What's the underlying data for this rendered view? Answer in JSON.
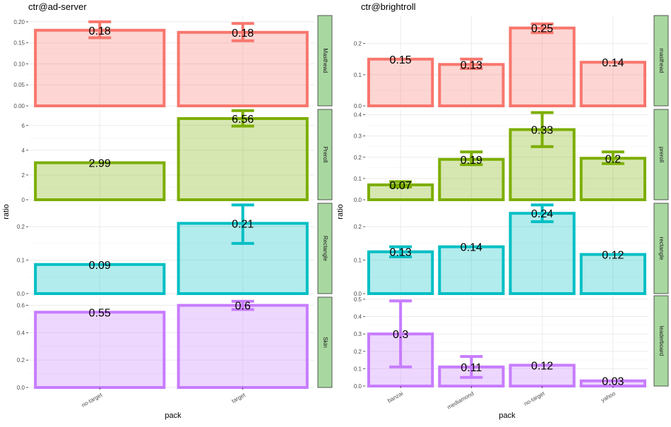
{
  "colors": {
    "Masthead": "#F8766D",
    "Preroll": "#7CAE00",
    "Rectangle": "#00BFC4",
    "Skin": "#C77CFF",
    "strip": "#A8D8A0",
    "grid": "#EBEBEB"
  },
  "chart_data": [
    {
      "type": "bar",
      "title": "ctr@ad-server",
      "xlabel": "pack",
      "ylabel": "ratio",
      "categories": [
        "no-target",
        "target"
      ],
      "grid": true,
      "panels": [
        {
          "strip": "Masthead",
          "color_key": "Masthead",
          "ylim": [
            0,
            0.215
          ],
          "yticks": [
            0,
            0.05,
            0.1,
            0.15,
            0.2
          ],
          "yticklabels": [
            "0.00",
            "0.05",
            "0.10",
            "0.15",
            "0.20"
          ],
          "values": [
            0.18,
            0.175
          ],
          "labels": [
            "0.18",
            "0.18"
          ],
          "err": [
            [
              0.162,
              0.2
            ],
            [
              0.155,
              0.196
            ]
          ]
        },
        {
          "strip": "Preroll",
          "color_key": "Preroll",
          "ylim": [
            0,
            7.3
          ],
          "yticks": [
            0,
            2,
            4,
            6
          ],
          "yticklabels": [
            "0",
            "2",
            "4",
            "6"
          ],
          "values": [
            2.99,
            6.56
          ],
          "labels": [
            "2.99",
            "6.56"
          ],
          "err": [
            null,
            [
              5.95,
              7.2
            ]
          ]
        },
        {
          "strip": "Rectangle",
          "color_key": "Rectangle",
          "ylim": [
            0,
            0.27
          ],
          "yticks": [
            0,
            0.1,
            0.2
          ],
          "yticklabels": [
            "0.0",
            "0.1",
            "0.2"
          ],
          "values": [
            0.087,
            0.21
          ],
          "labels": [
            "0.09",
            "0.21"
          ],
          "err": [
            null,
            [
              0.15,
              0.265
            ]
          ]
        },
        {
          "strip": "Skin",
          "color_key": "Skin",
          "ylim": [
            0,
            0.66
          ],
          "yticks": [
            0,
            0.2,
            0.4,
            0.6
          ],
          "yticklabels": [
            "0.0",
            "0.2",
            "0.4",
            "0.6"
          ],
          "values": [
            0.55,
            0.6
          ],
          "labels": [
            "0.55",
            "0.6"
          ],
          "err": [
            null,
            [
              0.57,
              0.63
            ]
          ]
        }
      ]
    },
    {
      "type": "bar",
      "title": "ctr@brightroll",
      "xlabel": "pack",
      "ylabel": "ratio",
      "categories": [
        "banzai",
        "mediamond",
        "no-target",
        "yahoo"
      ],
      "grid": true,
      "panels": [
        {
          "strip": "masthead",
          "color_key": "Masthead",
          "ylim": [
            0,
            0.29
          ],
          "yticks": [
            0,
            0.1,
            0.2
          ],
          "yticklabels": [
            "0.0",
            "0.1",
            "0.2"
          ],
          "values": [
            0.15,
            0.133,
            0.25,
            0.14
          ],
          "labels": [
            "0.15",
            "0.13",
            "0.25",
            "0.14"
          ],
          "err": [
            null,
            [
              0.12,
              0.15
            ],
            [
              0.235,
              0.263
            ],
            null
          ]
        },
        {
          "strip": "preroll",
          "color_key": "Preroll",
          "ylim": [
            0,
            0.425
          ],
          "yticks": [
            0,
            0.1,
            0.2,
            0.3,
            0.4
          ],
          "yticklabels": [
            "0.0",
            "0.1",
            "0.2",
            "0.3",
            "0.4"
          ],
          "values": [
            0.07,
            0.19,
            0.33,
            0.195
          ],
          "labels": [
            "0.07",
            "0.19",
            "0.33",
            "0.2"
          ],
          "err": [
            [
              0.06,
              0.085
            ],
            [
              0.165,
              0.225
            ],
            [
              0.25,
              0.41
            ],
            [
              0.17,
              0.225
            ]
          ]
        },
        {
          "strip": "rectangle",
          "color_key": "Rectangle",
          "ylim": [
            0,
            0.27
          ],
          "yticks": [
            0,
            0.1,
            0.2
          ],
          "yticklabels": [
            "0.0",
            "0.1",
            "0.2"
          ],
          "values": [
            0.125,
            0.14,
            0.24,
            0.117
          ],
          "labels": [
            "0.13",
            "0.14",
            "0.24",
            "0.12"
          ],
          "err": [
            [
              0.11,
              0.14
            ],
            null,
            [
              0.215,
              0.265
            ],
            null
          ]
        },
        {
          "strip": "leaderboard",
          "color_key": "Skin",
          "ylim": [
            0,
            0.52
          ],
          "yticks": [
            0,
            0.1,
            0.2,
            0.3,
            0.4,
            0.5
          ],
          "yticklabels": [
            "0.0",
            "0.1",
            "0.2",
            "0.3",
            "0.4",
            "0.5"
          ],
          "values": [
            0.3,
            0.11,
            0.12,
            0.03
          ],
          "labels": [
            "0.3",
            "0.11",
            "0.12",
            "0.03"
          ],
          "err": [
            [
              0.11,
              0.49
            ],
            [
              0.05,
              0.17
            ],
            null,
            null
          ]
        }
      ]
    }
  ]
}
